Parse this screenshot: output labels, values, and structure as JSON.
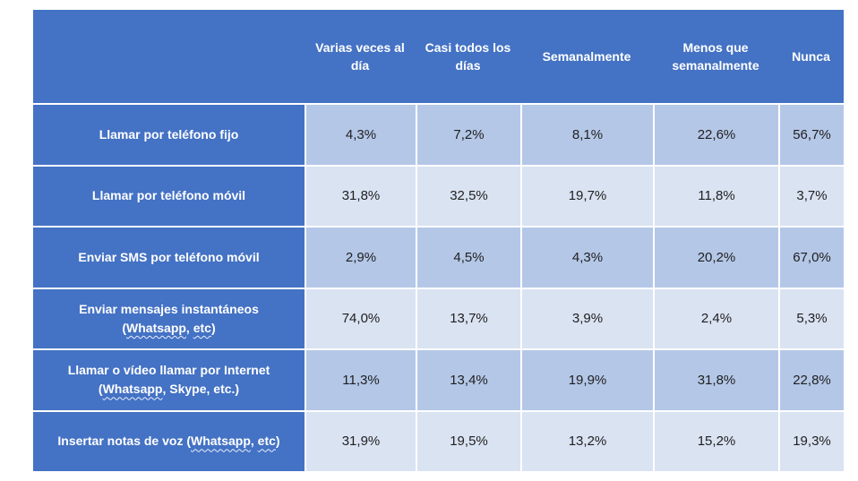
{
  "colors": {
    "header_bg": "#4472C4",
    "band_dark": "#B4C7E7",
    "band_light": "#DAE3F2",
    "gridline": "#FFFFFF",
    "header_text": "#FFFFFF",
    "value_text": "#1F1F1F"
  },
  "table": {
    "columns": [
      "Varias veces al día",
      "Casi todos los días",
      "Semanalmente",
      "Menos que semanalmente",
      "Nunca"
    ],
    "rows": [
      {
        "label_segments": [
          {
            "t": "Llamar por teléfono fijo",
            "w": false,
            "br": false
          }
        ],
        "values": [
          "4,3%",
          "7,2%",
          "8,1%",
          "22,6%",
          "56,7%"
        ]
      },
      {
        "label_segments": [
          {
            "t": "Llamar por teléfono móvil",
            "w": false,
            "br": false
          }
        ],
        "values": [
          "31,8%",
          "32,5%",
          "19,7%",
          "11,8%",
          "3,7%"
        ]
      },
      {
        "label_segments": [
          {
            "t": "Enviar SMS por teléfono móvil",
            "w": false,
            "br": false
          }
        ],
        "values": [
          "2,9%",
          "4,5%",
          "4,3%",
          "20,2%",
          "67,0%"
        ]
      },
      {
        "label_segments": [
          {
            "t": "Enviar mensajes instantáneos",
            "w": false,
            "br": false
          },
          {
            "t": "(",
            "w": false,
            "br": true
          },
          {
            "t": "Whatsapp",
            "w": true,
            "br": false
          },
          {
            "t": ", ",
            "w": false,
            "br": false
          },
          {
            "t": "etc",
            "w": true,
            "br": false
          },
          {
            "t": ")",
            "w": false,
            "br": false
          }
        ],
        "values": [
          "74,0%",
          "13,7%",
          "3,9%",
          "2,4%",
          "5,3%"
        ]
      },
      {
        "label_segments": [
          {
            "t": "Llamar o vídeo llamar por Internet",
            "w": false,
            "br": false
          },
          {
            "t": "(",
            "w": false,
            "br": true
          },
          {
            "t": "Whatsapp",
            "w": true,
            "br": false
          },
          {
            "t": ", Skype, etc.)",
            "w": false,
            "br": false
          }
        ],
        "values": [
          "11,3%",
          "13,4%",
          "19,9%",
          "31,8%",
          "22,8%"
        ]
      },
      {
        "label_segments": [
          {
            "t": "Insertar notas de voz (",
            "w": false,
            "br": false
          },
          {
            "t": "Whatsapp",
            "w": true,
            "br": false
          },
          {
            "t": ", ",
            "w": false,
            "br": false
          },
          {
            "t": "etc",
            "w": true,
            "br": false
          },
          {
            "t": ")",
            "w": false,
            "br": false
          }
        ],
        "values": [
          "31,9%",
          "19,5%",
          "13,2%",
          "15,2%",
          "19,3%"
        ]
      }
    ]
  },
  "chart_data": {
    "type": "table",
    "title": "",
    "columns": [
      "Varias veces al día",
      "Casi todos los días",
      "Semanalmente",
      "Menos que semanalmente",
      "Nunca"
    ],
    "row_labels": [
      "Llamar por teléfono fijo",
      "Llamar por teléfono móvil",
      "Enviar SMS por teléfono móvil",
      "Enviar mensajes instantáneos (Whatsapp, etc)",
      "Llamar o vídeo llamar por Internet (Whatsapp, Skype, etc.)",
      "Insertar notas de voz (Whatsapp, etc)"
    ],
    "values_percent": [
      [
        4.3,
        7.2,
        8.1,
        22.6,
        56.7
      ],
      [
        31.8,
        32.5,
        19.7,
        11.8,
        3.7
      ],
      [
        2.9,
        4.5,
        4.3,
        20.2,
        67.0
      ],
      [
        74.0,
        13.7,
        3.9,
        2.4,
        5.3
      ],
      [
        11.3,
        13.4,
        19.9,
        31.8,
        22.8
      ],
      [
        31.9,
        19.5,
        13.2,
        15.2,
        19.3
      ]
    ],
    "value_format": "es-ES decimal comma, one decimal, percent",
    "layout": "banded rows alternating light blue shades, blue header row and blue row-label column, white gridlines"
  }
}
